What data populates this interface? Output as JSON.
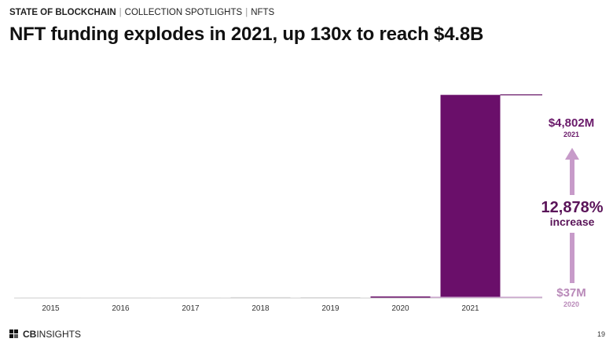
{
  "header": {
    "report": "STATE OF BLOCKCHAIN",
    "section": "COLLECTION SPOTLIGHTS",
    "topic": "NFTS"
  },
  "footer": {
    "brand_bold": "CB",
    "brand_rest": "INSIGHTS",
    "page_number": "19"
  },
  "colors": {
    "bar_highlight": "#6a0f6a",
    "bar_muted": "#d9d9d9",
    "bar_2020": "#6a0f6a",
    "arrow": "#c79bc9",
    "annotation": "#6a1a6a"
  },
  "chart_data": {
    "type": "bar",
    "title": "NFT funding explodes in 2021, up 130x to reach $4.8B",
    "categories": [
      "2015",
      "2016",
      "2017",
      "2018",
      "2019",
      "2020",
      "2021"
    ],
    "values": [
      0.5,
      0.8,
      1.5,
      22,
      20,
      37,
      4802
    ],
    "unit": "$M",
    "ylim": [
      0,
      5000
    ],
    "xlabel": "",
    "ylabel": "",
    "grid": false,
    "annotations": {
      "top_value": "$4,802M",
      "top_year": "2021",
      "bottom_value": "$37M",
      "bottom_year": "2020",
      "increase_value": "12,878%",
      "increase_label": "increase"
    }
  }
}
